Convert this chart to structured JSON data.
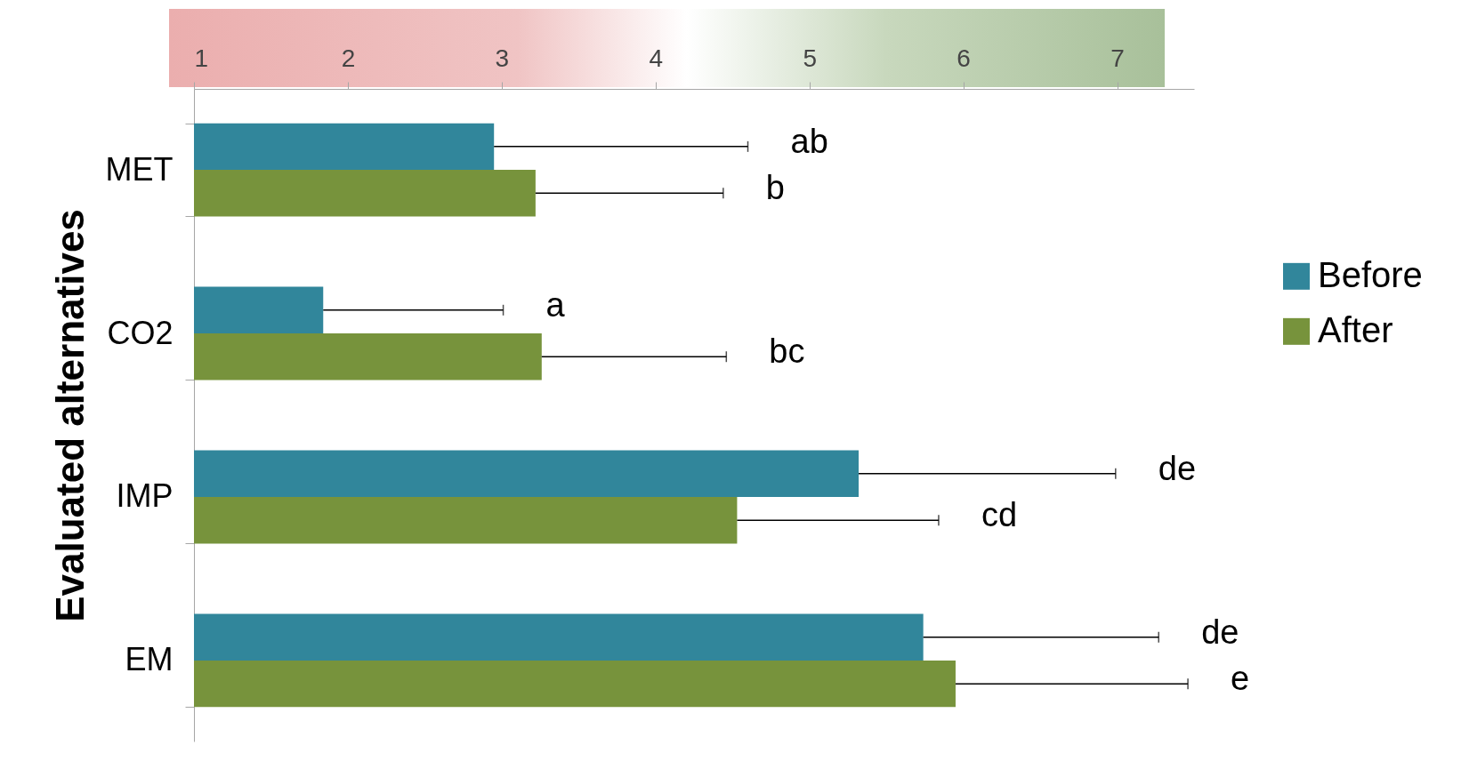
{
  "chart_data": {
    "type": "bar",
    "orientation": "horizontal",
    "ylabel": "Evaluated alternatives",
    "categories": [
      "MET",
      "CO2",
      "IMP",
      "EM"
    ],
    "series": [
      {
        "name": "Before",
        "color": "#31869b",
        "values": [
          2.95,
          1.84,
          5.32,
          5.74
        ],
        "errors": [
          [
            2.95,
            4.6
          ],
          [
            1.84,
            3.01
          ],
          [
            5.32,
            6.99
          ],
          [
            5.74,
            7.27
          ]
        ]
      },
      {
        "name": "After",
        "color": "#77933c",
        "values": [
          3.22,
          3.26,
          4.53,
          5.95
        ],
        "errors": [
          [
            3.22,
            4.44
          ],
          [
            3.26,
            4.46
          ],
          [
            4.53,
            5.84
          ],
          [
            5.95,
            7.46
          ]
        ]
      }
    ],
    "xlim": [
      1,
      7.5
    ],
    "xticks": [
      1,
      2,
      3,
      4,
      5,
      6,
      7
    ],
    "grid": false,
    "legend": "right",
    "annotations": [
      "ab",
      "b",
      "a",
      "bc",
      "de",
      "cd",
      "de",
      "e"
    ]
  }
}
